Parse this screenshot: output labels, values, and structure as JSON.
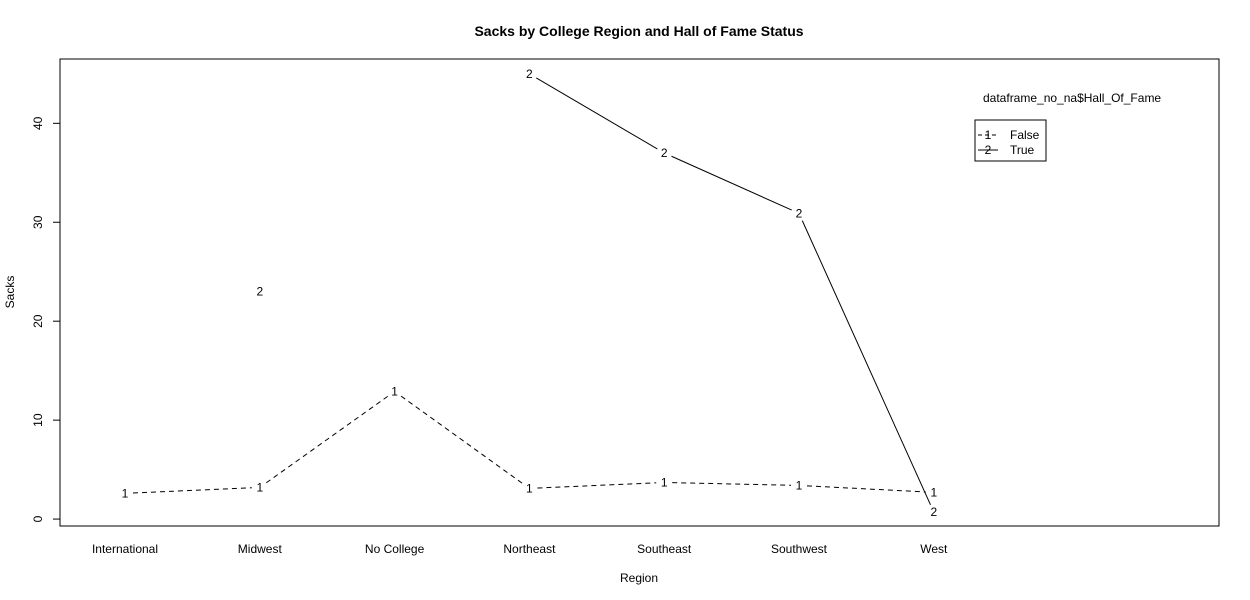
{
  "chart_data": {
    "type": "line",
    "title": "Sacks by College Region and Hall of Fame Status",
    "xlabel": "Region",
    "ylabel": "Sacks",
    "categories": [
      "International",
      "Midwest",
      "No College",
      "Northeast",
      "Southeast",
      "Southwest",
      "West"
    ],
    "yticks": [
      0,
      10,
      20,
      30,
      40
    ],
    "ylim": [
      -0.7,
      46.5
    ],
    "legend": {
      "title": "dataframe_no_na$Hall_Of_Fame",
      "placement": "top-right",
      "entries": [
        {
          "symbol": "1",
          "label": "False",
          "line": "dashed"
        },
        {
          "symbol": "2",
          "label": "True",
          "line": "solid"
        }
      ]
    },
    "series": [
      {
        "symbol": "1",
        "line": "dashed",
        "values": [
          2.6,
          3.2,
          12.9,
          3.1,
          3.7,
          3.4,
          2.7
        ]
      },
      {
        "symbol": "2",
        "line": "solid",
        "values": [
          null,
          23.0,
          null,
          45.0,
          37.0,
          30.9,
          0.7
        ]
      }
    ]
  }
}
